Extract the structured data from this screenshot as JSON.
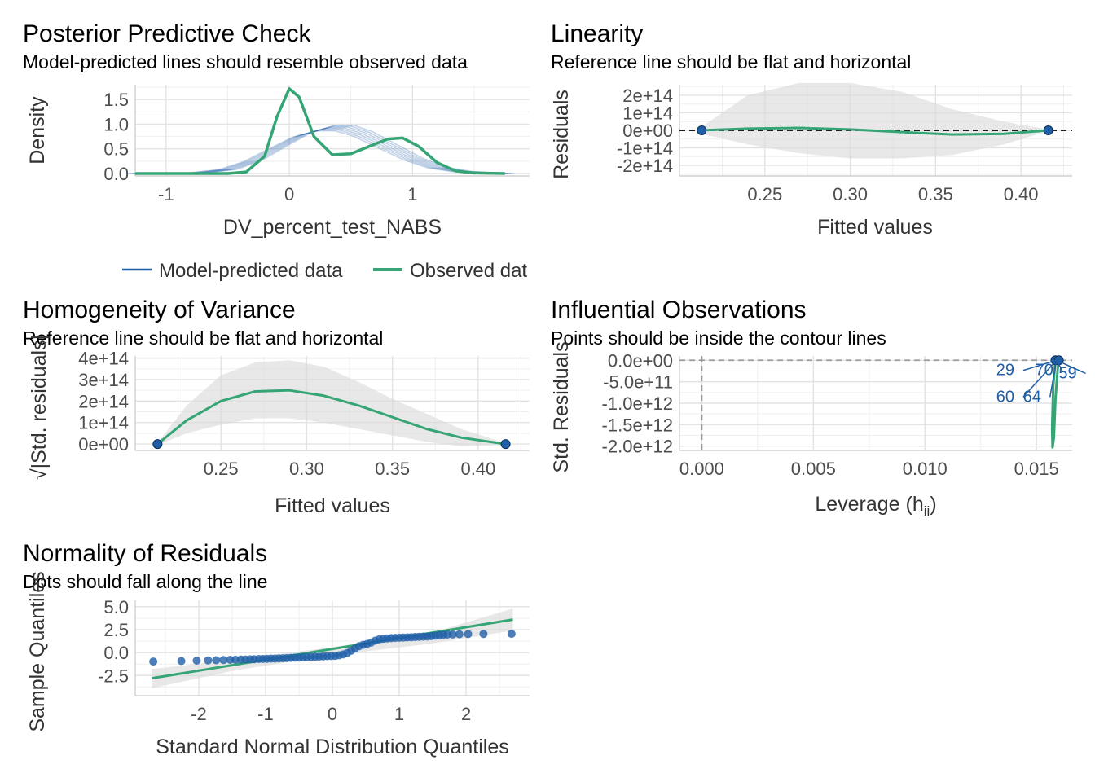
{
  "colors": {
    "model": "#1f5fa8",
    "observed": "#35a575",
    "band": "#d9d9d9",
    "ref": "#000000",
    "contour": "#9a9a9a"
  },
  "chart_data": [
    {
      "id": "ppc",
      "type": "line",
      "title": "Posterior Predictive Check",
      "subtitle": "Model-predicted lines should resemble observed data",
      "xlabel": "DV_percent_test_NABS",
      "ylabel": "Density",
      "xlim": [
        -1.25,
        1.95
      ],
      "ylim": [
        -0.05,
        1.8
      ],
      "xticks": [
        -1,
        0,
        1
      ],
      "xtick_labels": [
        "-1",
        "0",
        "1"
      ],
      "yticks": [
        0.0,
        0.5,
        1.0,
        1.5
      ],
      "ytick_labels": [
        "0.0",
        "0.5",
        "1.0",
        "1.5"
      ],
      "legend": {
        "position": "bottom",
        "items": [
          {
            "label": "Model-predicted data",
            "color": "#1f5fa8"
          },
          {
            "label": "Observed dat",
            "color": "#35a575"
          }
        ]
      },
      "series": [
        {
          "role": "model",
          "x": [
            -1.25,
            -1.0,
            -0.75,
            -0.5,
            -0.3,
            -0.1,
            0.1,
            0.3,
            0.45,
            0.6,
            0.8,
            1.0,
            1.2,
            1.4,
            1.6,
            1.75
          ],
          "y": [
            0.0,
            0.0,
            0.01,
            0.08,
            0.25,
            0.52,
            0.78,
            0.92,
            0.92,
            0.8,
            0.55,
            0.3,
            0.12,
            0.04,
            0.01,
            0.0
          ]
        },
        {
          "role": "observed",
          "x": [
            -1.25,
            -0.8,
            -0.5,
            -0.35,
            -0.2,
            -0.1,
            0.0,
            0.08,
            0.2,
            0.35,
            0.5,
            0.65,
            0.8,
            0.92,
            1.05,
            1.2,
            1.35,
            1.5,
            1.75
          ],
          "y": [
            0.0,
            0.0,
            0.0,
            0.03,
            0.35,
            1.15,
            1.72,
            1.55,
            0.75,
            0.38,
            0.4,
            0.55,
            0.7,
            0.72,
            0.55,
            0.22,
            0.05,
            0.01,
            0.0
          ]
        }
      ]
    },
    {
      "id": "linearity",
      "type": "scatter",
      "title": "Linearity",
      "subtitle": "Reference line should be flat and horizontal",
      "xlabel": "Fitted values",
      "ylabel": "Residuals",
      "xlim": [
        0.2,
        0.43
      ],
      "ylim": [
        -260000000000000.0,
        260000000000000.0
      ],
      "xticks": [
        0.25,
        0.3,
        0.35,
        0.4
      ],
      "xtick_labels": [
        "0.25",
        "0.30",
        "0.35",
        "0.40"
      ],
      "yticks": [
        -200000000000000.0,
        -100000000000000.0,
        0,
        100000000000000.0,
        200000000000000.0
      ],
      "ytick_labels": [
        "-2e+14",
        "-1e+14",
        "0e+00",
        "1e+14",
        "2e+14"
      ],
      "points": {
        "x": [
          0.213,
          0.416
        ],
        "y": [
          0,
          0
        ]
      },
      "reference_y": 0,
      "smooth": {
        "x": [
          0.213,
          0.24,
          0.27,
          0.3,
          0.33,
          0.36,
          0.39,
          0.416
        ],
        "y": [
          0,
          10000000000000.0,
          14000000000000.0,
          5000000000000.0,
          -10000000000000.0,
          -24000000000000.0,
          -20000000000000.0,
          0
        ]
      },
      "band": {
        "x": [
          0.213,
          0.24,
          0.27,
          0.3,
          0.33,
          0.36,
          0.39,
          0.416
        ],
        "upper": [
          20000000000000.0,
          200000000000000.0,
          270000000000000.0,
          270000000000000.0,
          220000000000000.0,
          120000000000000.0,
          50000000000000.0,
          5000000000000.0
        ],
        "lower": [
          -20000000000000.0,
          -80000000000000.0,
          -130000000000000.0,
          -160000000000000.0,
          -160000000000000.0,
          -140000000000000.0,
          -80000000000000.0,
          -5000000000000.0
        ]
      }
    },
    {
      "id": "homogeneity",
      "type": "scatter",
      "title": "Homogeneity of Variance",
      "subtitle": "Reference line should be flat and horizontal",
      "xlabel": "Fitted values",
      "ylabel": "√|Std. residuals|",
      "xlim": [
        0.2,
        0.43
      ],
      "ylim": [
        -30000000000000.0,
        410000000000000.0
      ],
      "xticks": [
        0.25,
        0.3,
        0.35,
        0.4
      ],
      "xtick_labels": [
        "0.25",
        "0.30",
        "0.35",
        "0.40"
      ],
      "yticks": [
        0,
        100000000000000.0,
        200000000000000.0,
        300000000000000.0,
        400000000000000.0
      ],
      "ytick_labels": [
        "0e+00",
        "1e+14",
        "2e+14",
        "3e+14",
        "4e+14"
      ],
      "points": {
        "x": [
          0.213,
          0.416
        ],
        "y": [
          0,
          0
        ]
      },
      "smooth": {
        "x": [
          0.213,
          0.23,
          0.25,
          0.27,
          0.29,
          0.31,
          0.33,
          0.35,
          0.37,
          0.39,
          0.416
        ],
        "y": [
          0,
          110000000000000.0,
          200000000000000.0,
          245000000000000.0,
          250000000000000.0,
          225000000000000.0,
          180000000000000.0,
          125000000000000.0,
          70000000000000.0,
          30000000000000.0,
          0
        ]
      },
      "band": {
        "x": [
          0.213,
          0.23,
          0.25,
          0.27,
          0.29,
          0.31,
          0.33,
          0.35,
          0.37,
          0.39,
          0.416
        ],
        "upper": [
          5000000000000.0,
          180000000000000.0,
          320000000000000.0,
          380000000000000.0,
          390000000000000.0,
          360000000000000.0,
          290000000000000.0,
          210000000000000.0,
          140000000000000.0,
          70000000000000.0,
          5000000000000.0
        ],
        "lower": [
          -5000000000000.0,
          50000000000000.0,
          90000000000000.0,
          120000000000000.0,
          120000000000000.0,
          100000000000000.0,
          70000000000000.0,
          40000000000000.0,
          10000000000000.0,
          -10000000000000.0,
          -5000000000000.0
        ]
      }
    },
    {
      "id": "influential",
      "type": "scatter",
      "title": "Influential Observations",
      "subtitle": "Points should be inside the contour lines",
      "xlabel": "Leverage (h",
      "xlabel_sub": "ii",
      "xlabel_end": ")",
      "ylabel": "Std. Residuals",
      "xlim": [
        -0.001,
        0.0166
      ],
      "ylim": [
        -2100000000000.0,
        100000000000.0
      ],
      "xticks": [
        0.0,
        0.005,
        0.01,
        0.015
      ],
      "xtick_labels": [
        "0.000",
        "0.005",
        "0.010",
        "0.015"
      ],
      "yticks": [
        -2000000000000.0,
        -1500000000000.0,
        -1000000000000.0,
        -500000000000.0,
        0
      ],
      "ytick_labels": [
        "-2.0e+12",
        "-1.5e+12",
        "-1.0e+12",
        "-5.0e+11",
        "0.0e+00"
      ],
      "reference_x": 0,
      "reference_y": 0,
      "points": {
        "x": [
          0.01585,
          0.016
        ],
        "y": [
          0,
          0
        ]
      },
      "smooth": {
        "x": [
          0.01585,
          0.01575,
          0.0157,
          0.01572,
          0.01578,
          0.01585,
          0.01595,
          0.016
        ],
        "y": [
          0,
          -600000000000.0,
          -1600000000000.0,
          -2030000000000.0,
          -1800000000000.0,
          -900000000000.0,
          -200000000000.0,
          0
        ]
      },
      "labels": [
        {
          "text": "29",
          "x": 0.0136,
          "y": -350000000000.0
        },
        {
          "text": "70",
          "x": 0.01535,
          "y": -350000000000.0
        },
        {
          "text": "59",
          "x": 0.0164,
          "y": -420000000000.0
        },
        {
          "text": "60",
          "x": 0.0136,
          "y": -970000000000.0
        },
        {
          "text": "64",
          "x": 0.0148,
          "y": -970000000000.0
        }
      ]
    },
    {
      "id": "normality",
      "type": "scatter",
      "title": "Normality of Residuals",
      "subtitle": "Dots should fall along the line",
      "xlabel": "Standard Normal Distribution Quantiles",
      "ylabel": "Sample Quantiles",
      "xlim": [
        -2.95,
        2.95
      ],
      "ylim": [
        -4.7,
        5.7
      ],
      "xticks": [
        -2,
        -1,
        0,
        1,
        2
      ],
      "xtick_labels": [
        "-2",
        "-1",
        "0",
        "1",
        "2"
      ],
      "yticks": [
        -2.5,
        0,
        2.5,
        5
      ],
      "ytick_labels": [
        "-2.5",
        "0.0",
        "2.5",
        "5.0"
      ],
      "line": {
        "x": [
          -2.7,
          2.7
        ],
        "y": [
          -2.8,
          3.6
        ]
      },
      "band": {
        "x": [
          -2.7,
          -1.5,
          0,
          1.5,
          2.7
        ],
        "upper": [
          -1.8,
          -0.8,
          0.6,
          2.2,
          4.8
        ],
        "lower": [
          -3.9,
          -2.0,
          -0.3,
          1.0,
          2.4
        ]
      },
      "points": {
        "x": [
          -2.68,
          -2.26,
          -2.03,
          -1.86,
          -1.74,
          -1.63,
          -1.53,
          -1.45,
          -1.37,
          -1.3,
          -1.23,
          -1.17,
          -1.1,
          -1.04,
          -0.98,
          -0.92,
          -0.86,
          -0.8,
          -0.74,
          -0.68,
          -0.62,
          -0.56,
          -0.5,
          -0.44,
          -0.38,
          -0.32,
          -0.26,
          -0.2,
          -0.14,
          -0.08,
          -0.02,
          0.04,
          0.1,
          0.16,
          0.22,
          0.28,
          0.34,
          0.4,
          0.46,
          0.52,
          0.58,
          0.64,
          0.7,
          0.76,
          0.82,
          0.88,
          0.94,
          1.0,
          1.06,
          1.12,
          1.18,
          1.24,
          1.3,
          1.36,
          1.42,
          1.48,
          1.54,
          1.6,
          1.66,
          1.72,
          1.8,
          1.9,
          2.03,
          2.26,
          2.68
        ],
        "y": [
          -0.98,
          -0.92,
          -0.88,
          -0.85,
          -0.83,
          -0.81,
          -0.79,
          -0.78,
          -0.76,
          -0.75,
          -0.73,
          -0.72,
          -0.7,
          -0.69,
          -0.68,
          -0.66,
          -0.65,
          -0.63,
          -0.62,
          -0.6,
          -0.58,
          -0.56,
          -0.54,
          -0.52,
          -0.5,
          -0.48,
          -0.46,
          -0.44,
          -0.42,
          -0.4,
          -0.38,
          -0.36,
          -0.3,
          -0.2,
          -0.05,
          0.2,
          0.45,
          0.7,
          0.85,
          0.95,
          1.1,
          1.3,
          1.45,
          1.5,
          1.55,
          1.58,
          1.6,
          1.62,
          1.64,
          1.66,
          1.68,
          1.7,
          1.72,
          1.74,
          1.76,
          1.8,
          1.85,
          1.9,
          1.95,
          1.97,
          1.98,
          2.0,
          2.02,
          2.03,
          2.05
        ]
      }
    }
  ]
}
